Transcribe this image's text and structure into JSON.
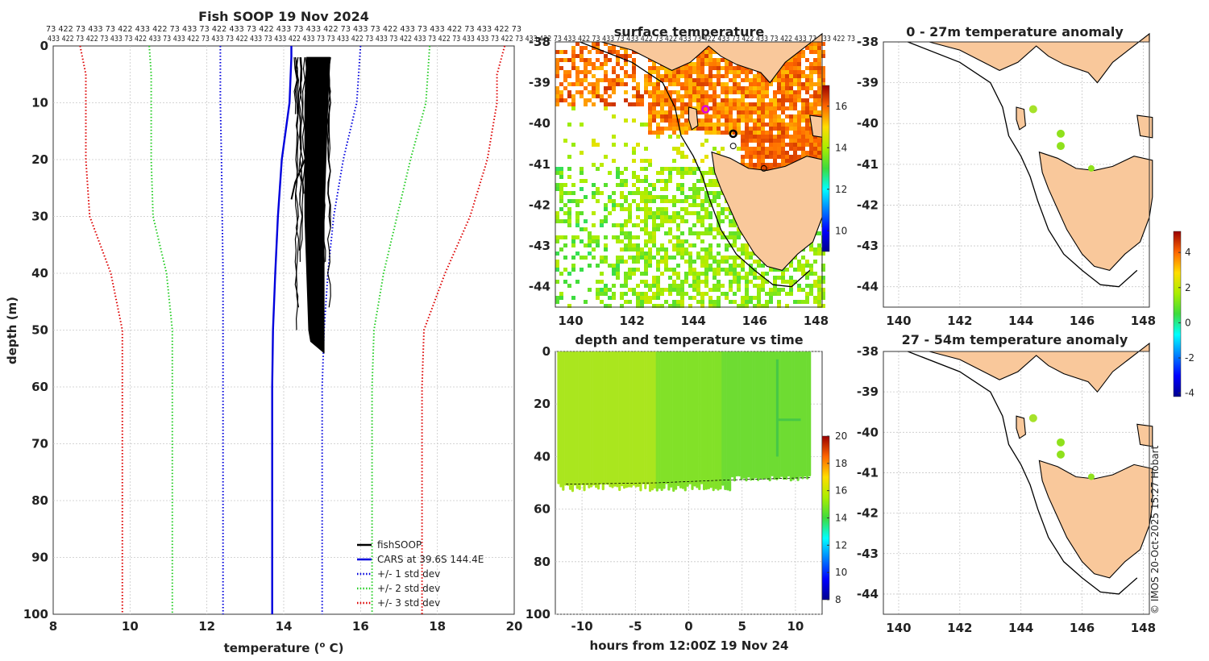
{
  "chart_data": [
    {
      "type": "line",
      "panel": "profile",
      "title": "Fish SOOP 19 Nov 2024",
      "xlabel": "temperature (o C)",
      "ylabel": "depth (m)",
      "xlim": [
        8,
        20
      ],
      "ylim": [
        0,
        100
      ],
      "y_inverted": true,
      "xticks": [
        "8",
        "10",
        "12",
        "14",
        "16",
        "18",
        "20"
      ],
      "yticks": [
        "0",
        "10",
        "20",
        "30",
        "40",
        "50",
        "60",
        "70",
        "80",
        "90",
        "100"
      ],
      "top_labels_row1": "73 422 73 433 73 422 433 422 73 433 73 422 433 73 422 433 73 433 422 73 433 73 422 433 73 433 422 73 433 422 73",
      "top_labels_row2": "433 422 73 422 73 433 73 422 433 73 433 422 73 433 73 422 433 73 433 422 433 73 73 433 422 73 433 73 422 433 73 422 73 433 433 73 422 73 433 422 73 433 422 73 433 73 433 422 73 422 433 73 422 433 73 422 433 73 422 433 73 433 422 73",
      "legend": [
        "fishSOOP",
        "CARS at 39.6S 144.4E",
        "+/- 1 std dev",
        "+/- 2 std dev",
        "+/- 3 std dev"
      ],
      "legend_colors": [
        "#000000",
        "#0000dd",
        "#0000dd",
        "#22cc22",
        "#dd0000"
      ],
      "series": [
        {
          "name": "CARS at 39.6S 144.4E",
          "style": "solid",
          "color": "#0000dd",
          "points": [
            [
              14.2,
              0
            ],
            [
              14.2,
              2
            ],
            [
              14.15,
              10
            ],
            [
              13.95,
              20
            ],
            [
              13.85,
              30
            ],
            [
              13.78,
              40
            ],
            [
              13.72,
              50
            ],
            [
              13.7,
              60
            ],
            [
              13.7,
              100
            ]
          ]
        },
        {
          "name": "+/- 1 std dev lower",
          "style": "dotted",
          "color": "#0000dd",
          "points": [
            [
              12.35,
              0
            ],
            [
              12.35,
              10
            ],
            [
              12.38,
              20
            ],
            [
              12.4,
              30
            ],
            [
              12.42,
              40
            ],
            [
              12.42,
              50
            ],
            [
              12.42,
              60
            ],
            [
              12.42,
              100
            ]
          ]
        },
        {
          "name": "+/- 1 std dev upper",
          "style": "dotted",
          "color": "#0000dd",
          "points": [
            [
              16.0,
              0
            ],
            [
              15.9,
              10
            ],
            [
              15.55,
              20
            ],
            [
              15.3,
              30
            ],
            [
              15.15,
              40
            ],
            [
              15.05,
              50
            ],
            [
              15.0,
              60
            ],
            [
              15.0,
              100
            ]
          ]
        },
        {
          "name": "+/- 2 std dev lower",
          "style": "dotted",
          "color": "#22cc22",
          "points": [
            [
              10.5,
              0
            ],
            [
              10.55,
              5
            ],
            [
              10.55,
              10
            ],
            [
              10.55,
              20
            ],
            [
              10.6,
              30
            ],
            [
              10.95,
              40
            ],
            [
              11.1,
              50
            ],
            [
              11.1,
              60
            ],
            [
              11.1,
              100
            ]
          ]
        },
        {
          "name": "+/- 2 std dev upper",
          "style": "dotted",
          "color": "#22cc22",
          "points": [
            [
              17.8,
              0
            ],
            [
              17.7,
              10
            ],
            [
              17.3,
              20
            ],
            [
              16.95,
              30
            ],
            [
              16.6,
              40
            ],
            [
              16.35,
              50
            ],
            [
              16.3,
              60
            ],
            [
              16.3,
              100
            ]
          ]
        },
        {
          "name": "+/- 3 std dev lower",
          "style": "dotted",
          "color": "#dd0000",
          "points": [
            [
              8.7,
              0
            ],
            [
              8.85,
              5
            ],
            [
              8.85,
              10
            ],
            [
              8.85,
              20
            ],
            [
              8.95,
              30
            ],
            [
              9.5,
              40
            ],
            [
              9.8,
              50
            ],
            [
              9.8,
              60
            ],
            [
              9.8,
              100
            ]
          ]
        },
        {
          "name": "+/- 3 std dev upper",
          "style": "dotted",
          "color": "#dd0000",
          "points": [
            [
              19.75,
              0
            ],
            [
              19.55,
              5
            ],
            [
              19.55,
              10
            ],
            [
              19.3,
              20
            ],
            [
              18.85,
              30
            ],
            [
              18.2,
              40
            ],
            [
              17.65,
              50
            ],
            [
              17.6,
              60
            ],
            [
              17.6,
              100
            ]
          ]
        }
      ],
      "fishsoop_band": {
        "left": [
          [
            14.6,
            2
          ],
          [
            14.55,
            10
          ],
          [
            14.55,
            20
          ],
          [
            14.55,
            30
          ],
          [
            14.6,
            40
          ],
          [
            14.65,
            50
          ],
          [
            14.7,
            52
          ]
        ],
        "right": [
          [
            15.2,
            2
          ],
          [
            15.15,
            10
          ],
          [
            15.1,
            20
          ],
          [
            15.05,
            30
          ],
          [
            15.05,
            40
          ],
          [
            15.05,
            50
          ],
          [
            15.05,
            54
          ]
        ]
      }
    },
    {
      "type": "heatmap",
      "panel": "surface",
      "title": "surface temperature",
      "xlim": [
        139.5,
        148.2
      ],
      "ylim": [
        -44.5,
        -38
      ],
      "xticks": [
        "140",
        "142",
        "144",
        "146",
        "148"
      ],
      "yticks": [
        "-38",
        "-39",
        "-40",
        "-41",
        "-42",
        "-43",
        "-44"
      ],
      "colorbar": {
        "range": [
          9,
          17
        ],
        "ticks": [
          "10",
          "12",
          "14",
          "16"
        ]
      }
    },
    {
      "type": "scatter",
      "panel": "time-depth",
      "title": "depth and temperature vs time",
      "xlabel": "hours from 12:00Z 19 Nov 24",
      "xlim": [
        -12.5,
        12.5
      ],
      "ylim": [
        0,
        100
      ],
      "y_inverted": true,
      "xticks": [
        "-10",
        "-5",
        "0",
        "5",
        "10"
      ],
      "yticks": [
        "0",
        "20",
        "40",
        "60",
        "80",
        "100"
      ],
      "colorbar": {
        "range": [
          8,
          20
        ],
        "ticks": [
          "8",
          "10",
          "12",
          "14",
          "16",
          "18",
          "20"
        ]
      }
    },
    {
      "type": "scatter",
      "panel": "anom-top",
      "title": "0 - 27m temperature anomaly",
      "xlim": [
        139.5,
        148.2
      ],
      "ylim": [
        -44.5,
        -38
      ],
      "xticks": [
        "140",
        "142",
        "144",
        "146",
        "148"
      ],
      "yticks": [
        "-38",
        "-39",
        "-40",
        "-41",
        "-42",
        "-43",
        "-44"
      ],
      "points": [
        [
          144.4,
          -39.65
        ],
        [
          145.3,
          -40.25
        ],
        [
          145.3,
          -40.55
        ],
        [
          146.3,
          -41.1
        ]
      ]
    },
    {
      "type": "scatter",
      "panel": "anom-bottom",
      "title": "27 - 54m temperature anomaly",
      "xlim": [
        139.5,
        148.2
      ],
      "ylim": [
        -44.5,
        -38
      ],
      "xticks": [
        "140",
        "142",
        "144",
        "146",
        "148"
      ],
      "yticks": [
        "-38",
        "-39",
        "-40",
        "-41",
        "-42",
        "-43",
        "-44"
      ],
      "points": [
        [
          144.4,
          -39.65
        ],
        [
          145.3,
          -40.25
        ],
        [
          145.3,
          -40.55
        ],
        [
          146.3,
          -41.1
        ]
      ],
      "colorbar": {
        "range": [
          -4.2,
          5.2
        ],
        "ticks": [
          "-4",
          "-2",
          "0",
          "2",
          "4"
        ]
      }
    }
  ],
  "copyright": "© IMOS 20-Oct-2025 15:27 Hobart",
  "colors": {
    "land": "#f9c89b",
    "coast": "#000000",
    "grid": "#c8c8c8"
  }
}
